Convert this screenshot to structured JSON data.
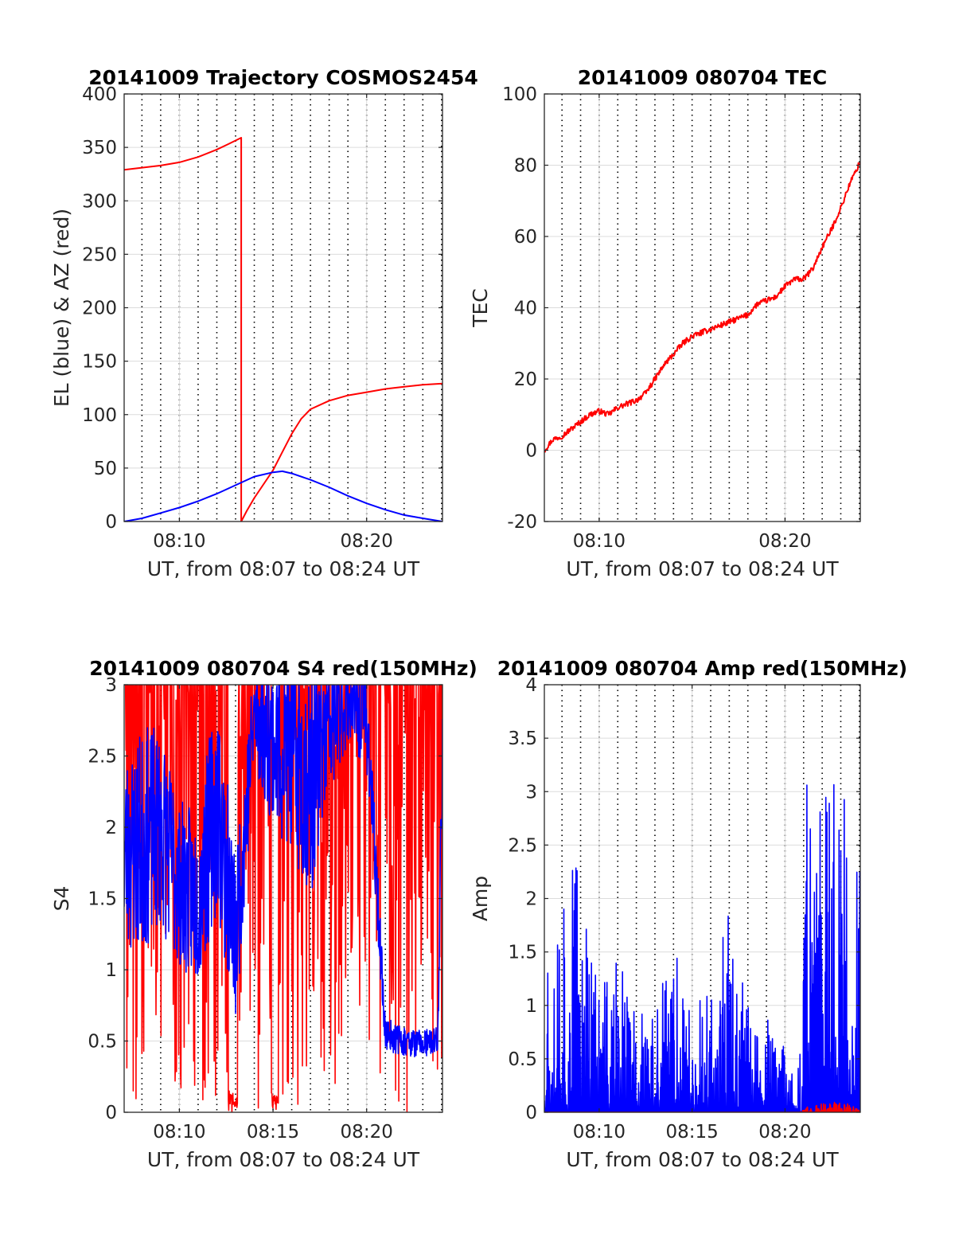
{
  "figure": {
    "background": "#ffffff",
    "axes_color": "#262626",
    "grid_color": "#dcdcdc",
    "vgrid_style": "dotted-black"
  },
  "chart_data": [
    {
      "id": "trajectory",
      "type": "line",
      "title": "20141009 Trajectory COSMOS2454",
      "xlabel": "UT, from 08:07 to 08:24 UT",
      "ylabel": "EL (blue) & AZ (red)",
      "xlim_min": [
        7.05,
        24.05
      ],
      "ylim": [
        0,
        400
      ],
      "yticks": [
        "0",
        "50",
        "100",
        "150",
        "200",
        "250",
        "300",
        "350",
        "400"
      ],
      "xticks": [
        {
          "min": 10,
          "label": "08:10"
        },
        {
          "min": 20,
          "label": "08:20"
        }
      ],
      "grid": true,
      "series": [
        {
          "color": "#ff0000",
          "x_min": [
            7.05,
            8,
            9,
            10,
            11,
            12,
            12.6,
            13.3,
            13.3,
            13.6,
            14,
            14.5,
            15,
            15.5,
            16,
            16.5,
            17,
            18,
            19,
            20,
            21,
            22,
            23,
            24.05
          ],
          "y": [
            329,
            331,
            333,
            336,
            341,
            348,
            353,
            359,
            0,
            10,
            22,
            35,
            48,
            65,
            82,
            96,
            105,
            113,
            118,
            121,
            124,
            126,
            128,
            129
          ]
        },
        {
          "color": "#0000ff",
          "x_min": [
            7.05,
            8,
            9,
            10,
            11,
            12,
            13,
            14,
            15,
            15.5,
            16,
            17,
            18,
            19,
            20,
            21,
            22,
            23,
            24.05
          ],
          "y": [
            0,
            3,
            8,
            13,
            19,
            26,
            34,
            42,
            46,
            47,
            45,
            39,
            32,
            24,
            17,
            11,
            6,
            3,
            0
          ]
        }
      ]
    },
    {
      "id": "tec",
      "type": "line",
      "title": "20141009 080704 TEC",
      "xlabel": "UT, from 08:07 to 08:24 UT",
      "ylabel": "TEC",
      "xlim_min": [
        7.05,
        24.05
      ],
      "ylim": [
        -20,
        100
      ],
      "yticks": [
        "-20",
        "0",
        "20",
        "40",
        "60",
        "80",
        "100"
      ],
      "xticks": [
        {
          "min": 10,
          "label": "08:10"
        },
        {
          "min": 20,
          "label": "08:20"
        }
      ],
      "grid": true,
      "series": [
        {
          "color": "#ff0000",
          "x_min": [
            7.05,
            7.5,
            8,
            8.5,
            9,
            9.5,
            10,
            10.5,
            11,
            11.5,
            12,
            12.5,
            13,
            13.5,
            14,
            14.5,
            15,
            15.5,
            16,
            16.5,
            17,
            17.5,
            18,
            18.5,
            19,
            19.5,
            20,
            20.5,
            21,
            21.5,
            22,
            22.5,
            23,
            23.5,
            24.05
          ],
          "y": [
            0,
            3,
            4,
            6,
            8,
            10,
            11,
            10,
            12,
            13,
            14,
            16,
            20,
            24,
            27,
            30,
            32,
            33,
            34,
            35,
            36,
            37,
            38,
            41,
            42,
            43,
            46,
            48,
            48,
            51,
            57,
            62,
            68,
            75,
            81
          ]
        }
      ]
    },
    {
      "id": "s4",
      "type": "line",
      "title": "20141009 080704 S4 red(150MHz)",
      "xlabel": "UT, from 08:07 to 08:24 UT",
      "ylabel": "S4",
      "xlim_min": [
        7.05,
        24.05
      ],
      "ylim": [
        0,
        3
      ],
      "yticks": [
        "0",
        "0.5",
        "1",
        "1.5",
        "2",
        "2.5",
        "3"
      ],
      "xticks": [
        {
          "min": 10,
          "label": "08:10"
        },
        {
          "min": 15,
          "label": "08:15"
        },
        {
          "min": 20,
          "label": "08:20"
        }
      ],
      "grid": true,
      "series": [
        {
          "color": "#ff0000",
          "style": "dense-noise",
          "x_min": [
            7.05,
            24.05
          ],
          "low": 0,
          "high": 3,
          "seed": 11,
          "gaps_min": [
            [
              12.6,
              13.1
            ],
            [
              14.9,
              15.3
            ]
          ]
        },
        {
          "color": "#0000ff",
          "style": "band",
          "x_min": [
            7.05,
            8,
            9,
            10,
            11,
            12,
            13,
            14,
            15,
            16,
            17,
            18,
            19,
            20,
            21,
            22,
            23,
            23.8,
            24.05
          ],
          "center": [
            1.8,
            1.9,
            2.0,
            1.6,
            1.5,
            2.2,
            1.2,
            2.8,
            2.6,
            2.5,
            2.3,
            2.7,
            2.9,
            2.8,
            0.55,
            0.5,
            0.48,
            0.5,
            2.6
          ],
          "amplitude": [
            0.7,
            0.8,
            0.7,
            0.6,
            0.6,
            0.8,
            0.6,
            0.4,
            0.6,
            0.7,
            0.8,
            0.5,
            0.3,
            0.4,
            0.12,
            0.1,
            0.1,
            0.1,
            0.4
          ],
          "seed": 23
        }
      ]
    },
    {
      "id": "amp",
      "type": "line",
      "title": "20141009 080704 Amp red(150MHz)",
      "xlabel": "UT, from 08:07 to 08:24 UT",
      "ylabel": "Amp",
      "xlim_min": [
        7.05,
        24.05
      ],
      "ylim": [
        0,
        4
      ],
      "yticks": [
        "0",
        "0.5",
        "1",
        "1.5",
        "2",
        "2.5",
        "3",
        "3.5",
        "4"
      ],
      "xticks": [
        {
          "min": 10,
          "label": "08:10"
        },
        {
          "min": 15,
          "label": "08:15"
        },
        {
          "min": 20,
          "label": "08:20"
        }
      ],
      "grid": true,
      "series": [
        {
          "color": "#0000ff",
          "style": "spikes",
          "x_min": [
            7.05,
            8,
            9,
            10,
            11,
            12,
            13,
            14,
            15,
            16,
            17,
            18,
            19,
            20,
            20.8,
            21,
            22,
            23,
            24.05
          ],
          "peak": [
            2.3,
            2.8,
            2.5,
            1.2,
            1.5,
            1.0,
            0.9,
            1.8,
            1.0,
            1.2,
            1.9,
            1.0,
            0.9,
            0.6,
            0.6,
            3.1,
            3.0,
            3.5,
            2.5
          ],
          "seed": 37
        },
        {
          "color": "#ff0000",
          "style": "spikes",
          "x_min": [
            7.05,
            20.8,
            21,
            22,
            23,
            24.05
          ],
          "peak": [
            0.0,
            0.0,
            0.05,
            0.08,
            0.1,
            0.05
          ],
          "seed": 41
        }
      ]
    }
  ]
}
